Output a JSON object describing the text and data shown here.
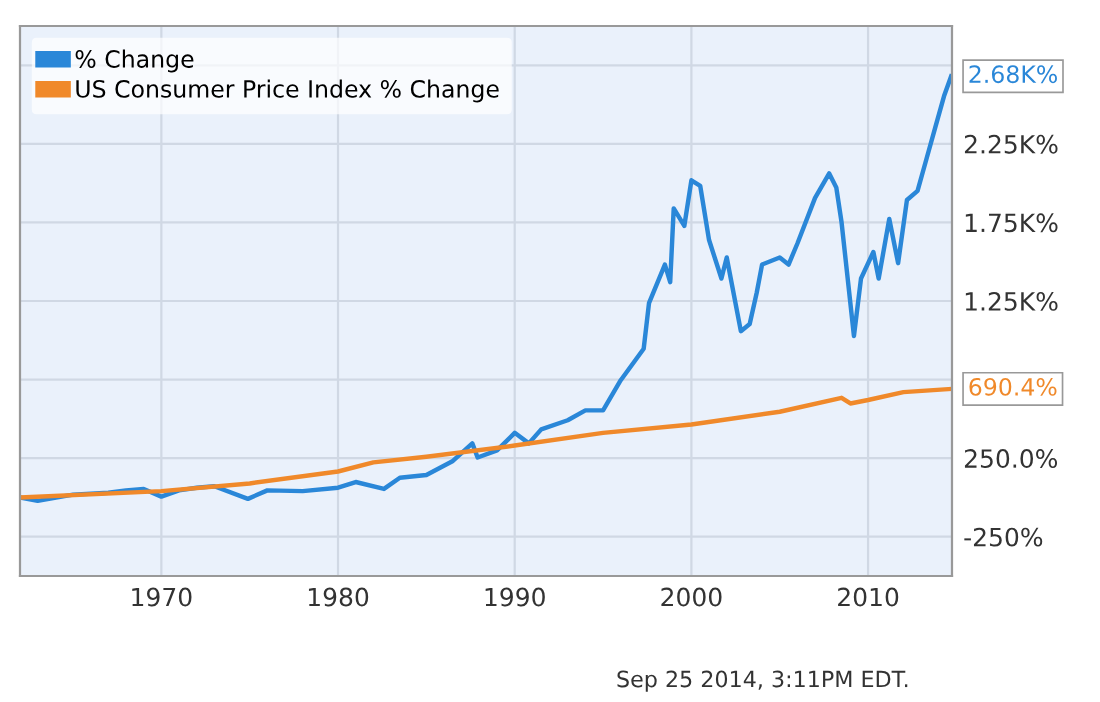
{
  "chart_data": {
    "type": "line",
    "series": [
      {
        "name": "% Change",
        "color": "#2a87d8",
        "x": [
          1962,
          1963,
          1965,
          1967,
          1968,
          1969,
          1970,
          1971,
          1972,
          1973,
          1974.9,
          1976,
          1978,
          1980,
          1981,
          1982.6,
          1983.5,
          1985,
          1986.5,
          1987.6,
          1987.9,
          1989,
          1990,
          1990.8,
          1991.5,
          1993,
          1994,
          1995,
          1996,
          1997.3,
          1997.6,
          1998.5,
          1998.8,
          1999,
          1999.6,
          2000,
          2000.5,
          2001,
          2001.7,
          2002,
          2002.8,
          2003.3,
          2003.7,
          2004,
          2005,
          2005.5,
          2006,
          2007,
          2007.8,
          2008.2,
          2008.5,
          2009.2,
          2009.6,
          2010.3,
          2010.6,
          2011.2,
          2011.7,
          2012.2,
          2012.8,
          2013.3,
          2013.8,
          2014.3,
          2014.7
        ],
        "values": [
          0,
          -22,
          18,
          30,
          45,
          54,
          5,
          45,
          62,
          71,
          -9,
          45,
          40,
          62,
          98,
          54,
          125,
          143,
          232,
          344,
          254,
          299,
          411,
          344,
          433,
          491,
          554,
          554,
          746,
          946,
          1236,
          1482,
          1370,
          1839,
          1728,
          2018,
          1982,
          1638,
          1393,
          1527,
          1058,
          1103,
          1304,
          1482,
          1527,
          1482,
          1616,
          1906,
          2062,
          1973,
          1750,
          1027,
          1393,
          1562,
          1393,
          1772,
          1491,
          1893,
          1951,
          2152,
          2353,
          2554,
          2680
        ]
      },
      {
        "name": "US Consumer Price Index % Change",
        "color": "#f0892a",
        "x": [
          1962,
          1970,
          1975,
          1980,
          1982,
          1985,
          1990,
          1995,
          2000,
          2005,
          2008.5,
          2009,
          2010,
          2012,
          2014.7
        ],
        "values": [
          0,
          40,
          89,
          165,
          223,
          259,
          330,
          411,
          464,
          545,
          634,
          598,
          620,
          670,
          690.4
        ]
      }
    ],
    "xlim": [
      1962,
      2014.75
    ],
    "xticks": [
      1970,
      1980,
      1990,
      2000,
      2010
    ],
    "ylim": [
      -500,
      3000
    ],
    "yticks": [
      {
        "value": -250,
        "label": "-250%"
      },
      {
        "value": 250,
        "label": "250.0%"
      },
      {
        "value": 750,
        "label": null
      },
      {
        "value": 1250,
        "label": "1.25K%"
      },
      {
        "value": 1750,
        "label": "1.75K%"
      },
      {
        "value": 2250,
        "label": "2.25K%"
      },
      {
        "value": 2750,
        "label": null
      }
    ],
    "grid": true,
    "legend": "top left",
    "marker": "none",
    "line_style": "solid",
    "annotations": [
      {
        "text": "2.68K%",
        "x": 2014.7,
        "y": 2680
      },
      {
        "text": "690.4%",
        "x": 2014.7,
        "y": 690.4
      },
      "Sep 25 2014, 3:11PM EDT."
    ]
  }
}
